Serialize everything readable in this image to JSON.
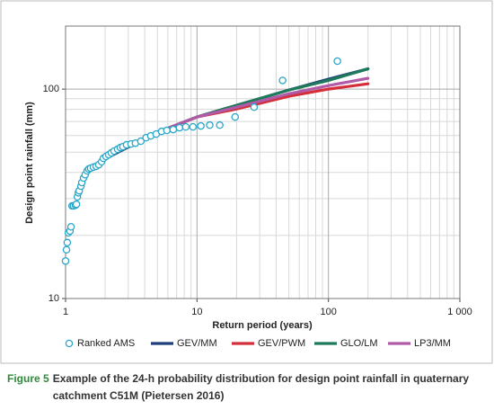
{
  "chart_data": {
    "type": "line",
    "xlabel": "Return period (years)",
    "ylabel": "Design point rainfall (mm)",
    "xscale": "log",
    "yscale": "log",
    "xlim": [
      1,
      1000
    ],
    "ylim": [
      10,
      200
    ],
    "xticks": [
      1,
      10,
      100,
      {
        "value": 1000,
        "label": "1 000"
      }
    ],
    "yticks": [
      10,
      100
    ],
    "grid": true,
    "legend": "bottom",
    "series": [
      {
        "name": "Ranked AMS",
        "type": "scatter",
        "color": "#2aa7c9",
        "x": [
          1.0,
          1.016,
          1.03,
          1.05,
          1.08,
          1.1,
          1.12,
          1.15,
          1.19,
          1.21,
          1.23,
          1.25,
          1.27,
          1.31,
          1.33,
          1.37,
          1.41,
          1.46,
          1.5,
          1.55,
          1.63,
          1.71,
          1.79,
          1.88,
          1.94,
          2.03,
          2.13,
          2.23,
          2.34,
          2.49,
          2.61,
          2.73,
          2.91,
          3.15,
          3.4,
          3.74,
          4.1,
          4.45,
          4.89,
          5.38,
          5.9,
          6.59,
          7.36,
          8.21,
          9.32,
          10.7,
          12.5,
          14.9,
          19.5,
          27.2,
          44.8,
          117
        ],
        "values": [
          15.1,
          17.1,
          18.5,
          20.6,
          21,
          22,
          27.7,
          27.7,
          27.9,
          28.2,
          30.6,
          32,
          32.7,
          34.4,
          35.8,
          37.6,
          39,
          40.7,
          41.5,
          41.9,
          42.4,
          42.8,
          43.6,
          45,
          46.7,
          47.7,
          48.6,
          49.6,
          50.6,
          51.6,
          52.6,
          53.1,
          54.2,
          54.7,
          55.2,
          56.4,
          58.6,
          59.8,
          61,
          62.8,
          63.5,
          64.1,
          65.4,
          66,
          66,
          66.7,
          67.3,
          67.3,
          73.6,
          82,
          110,
          136
        ]
      },
      {
        "name": "GEV/MM",
        "type": "line",
        "color": "#1f3f7a",
        "x": [
          2,
          5,
          10,
          20,
          50,
          100,
          200
        ],
        "values": [
          46.5,
          62.2,
          73.6,
          83.7,
          99,
          111.5,
          125
        ]
      },
      {
        "name": "GEV/PWM",
        "type": "line",
        "color": "#d42e3a",
        "x": [
          2,
          5,
          10,
          20,
          50,
          100,
          200
        ],
        "values": [
          48,
          62.2,
          73.6,
          80.4,
          92.4,
          100,
          106
        ]
      },
      {
        "name": "GLO/LM",
        "type": "line",
        "color": "#1e7a5a",
        "x": [
          2,
          5,
          10,
          20,
          50,
          100,
          200
        ],
        "values": [
          47,
          62.2,
          73.6,
          83.7,
          99,
          110,
          125
        ]
      },
      {
        "name": "LP3/MM",
        "type": "line",
        "color": "#b05aa8",
        "x": [
          2,
          5,
          10,
          20,
          50,
          100,
          200
        ],
        "values": [
          47.2,
          62.2,
          73.6,
          82,
          95,
          104,
          112.6
        ]
      }
    ]
  },
  "caption": {
    "label": "Figure 5",
    "text": "Example of the 24-h probability distribution for design point rainfall in quaternary catchment C51M (Pietersen 2016)"
  }
}
